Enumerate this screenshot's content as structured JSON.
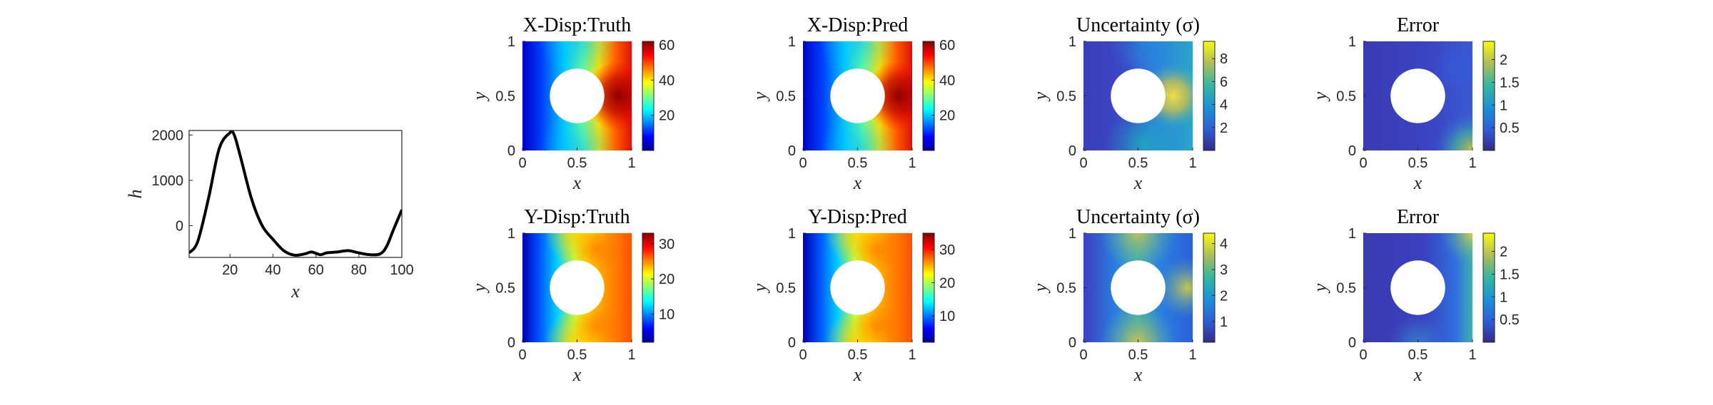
{
  "chart_data": [
    {
      "type": "line",
      "xlabel": "x",
      "ylabel": "h",
      "xlim": [
        1,
        100
      ],
      "ylim": [
        -700,
        2100
      ],
      "x_ticks": [
        "20",
        "40",
        "60",
        "80",
        "100"
      ],
      "y_ticks": [
        "0",
        "1000",
        "2000"
      ],
      "series": [
        {
          "color": "#000000",
          "x": [
            1,
            5,
            10,
            15,
            20,
            22,
            25,
            30,
            35,
            40,
            45,
            50,
            55,
            58,
            62,
            65,
            70,
            75,
            80,
            85,
            90,
            93,
            96,
            100
          ],
          "y": [
            -600,
            -350,
            600,
            1700,
            2050,
            2000,
            1500,
            600,
            0,
            -300,
            -550,
            -650,
            -620,
            -580,
            -640,
            -600,
            -580,
            -550,
            -600,
            -640,
            -620,
            -450,
            -100,
            350
          ]
        }
      ]
    },
    {
      "type": "heatmap",
      "title": "X-Disp:Truth",
      "xlabel": "x",
      "ylabel": "y",
      "xlim": [
        0,
        1
      ],
      "ylim": [
        0,
        1
      ],
      "x_ticks": [
        "0",
        "0.5",
        "1"
      ],
      "y_ticks": [
        "0",
        "0.5",
        "1"
      ],
      "colormap": "jet",
      "clim": [
        0,
        62
      ],
      "colorbar_ticks": [
        "20",
        "40",
        "60"
      ],
      "hole": {
        "cx": 0.5,
        "cy": 0.5,
        "r": 0.25
      }
    },
    {
      "type": "heatmap",
      "title": "X-Disp:Pred",
      "xlabel": "x",
      "ylabel": "y",
      "xlim": [
        0,
        1
      ],
      "ylim": [
        0,
        1
      ],
      "x_ticks": [
        "0",
        "0.5",
        "1"
      ],
      "y_ticks": [
        "0",
        "0.5",
        "1"
      ],
      "colormap": "jet",
      "clim": [
        0,
        62
      ],
      "colorbar_ticks": [
        "20",
        "40",
        "60"
      ],
      "hole": {
        "cx": 0.5,
        "cy": 0.5,
        "r": 0.25
      }
    },
    {
      "type": "heatmap",
      "title": "Uncertainty (σ)",
      "xlabel": "x",
      "ylabel": "y",
      "xlim": [
        0,
        1
      ],
      "ylim": [
        0,
        1
      ],
      "x_ticks": [
        "0",
        "0.5",
        "1"
      ],
      "y_ticks": [
        "0",
        "0.5",
        "1"
      ],
      "colormap": "parula",
      "clim": [
        0,
        9.5
      ],
      "colorbar_ticks": [
        "2",
        "4",
        "6",
        "8"
      ],
      "hole": {
        "cx": 0.5,
        "cy": 0.5,
        "r": 0.25
      }
    },
    {
      "type": "heatmap",
      "title": "Error",
      "xlabel": "x",
      "ylabel": "y",
      "xlim": [
        0,
        1
      ],
      "ylim": [
        0,
        1
      ],
      "x_ticks": [
        "0",
        "0.5",
        "1"
      ],
      "y_ticks": [
        "0",
        "0.5",
        "1"
      ],
      "colormap": "parula",
      "clim": [
        0,
        2.4
      ],
      "colorbar_ticks": [
        "0.5",
        "1",
        "1.5",
        "2"
      ],
      "hole": {
        "cx": 0.5,
        "cy": 0.5,
        "r": 0.25
      }
    },
    {
      "type": "heatmap",
      "title": "Y-Disp:Truth",
      "xlabel": "x",
      "ylabel": "y",
      "xlim": [
        0,
        1
      ],
      "ylim": [
        0,
        1
      ],
      "x_ticks": [
        "0",
        "0.5",
        "1"
      ],
      "y_ticks": [
        "0",
        "0.5",
        "1"
      ],
      "colormap": "jet",
      "clim": [
        2,
        33
      ],
      "colorbar_ticks": [
        "10",
        "20",
        "30"
      ],
      "hole": {
        "cx": 0.5,
        "cy": 0.5,
        "r": 0.25
      }
    },
    {
      "type": "heatmap",
      "title": "Y-Disp:Pred",
      "xlabel": "x",
      "ylabel": "y",
      "xlim": [
        0,
        1
      ],
      "ylim": [
        0,
        1
      ],
      "x_ticks": [
        "0",
        "0.5",
        "1"
      ],
      "y_ticks": [
        "0",
        "0.5",
        "1"
      ],
      "colormap": "jet",
      "clim": [
        2,
        35
      ],
      "colorbar_ticks": [
        "10",
        "20",
        "30"
      ],
      "hole": {
        "cx": 0.5,
        "cy": 0.5,
        "r": 0.25
      }
    },
    {
      "type": "heatmap",
      "title": "Uncertainty (σ)",
      "xlabel": "x",
      "ylabel": "y",
      "xlim": [
        0,
        1
      ],
      "ylim": [
        0,
        1
      ],
      "x_ticks": [
        "0",
        "0.5",
        "1"
      ],
      "y_ticks": [
        "0",
        "0.5",
        "1"
      ],
      "colormap": "parula",
      "clim": [
        0.2,
        4.4
      ],
      "colorbar_ticks": [
        "1",
        "2",
        "3",
        "4"
      ],
      "hole": {
        "cx": 0.5,
        "cy": 0.5,
        "r": 0.25
      }
    },
    {
      "type": "heatmap",
      "title": "Error",
      "xlabel": "x",
      "ylabel": "y",
      "xlim": [
        0,
        1
      ],
      "ylim": [
        0,
        1
      ],
      "x_ticks": [
        "0",
        "0.5",
        "1"
      ],
      "y_ticks": [
        "0",
        "0.5",
        "1"
      ],
      "colormap": "parula",
      "clim": [
        0,
        2.4
      ],
      "colorbar_ticks": [
        "0.5",
        "1",
        "1.5",
        "2"
      ],
      "hole": {
        "cx": 0.5,
        "cy": 0.5,
        "r": 0.25
      }
    }
  ]
}
